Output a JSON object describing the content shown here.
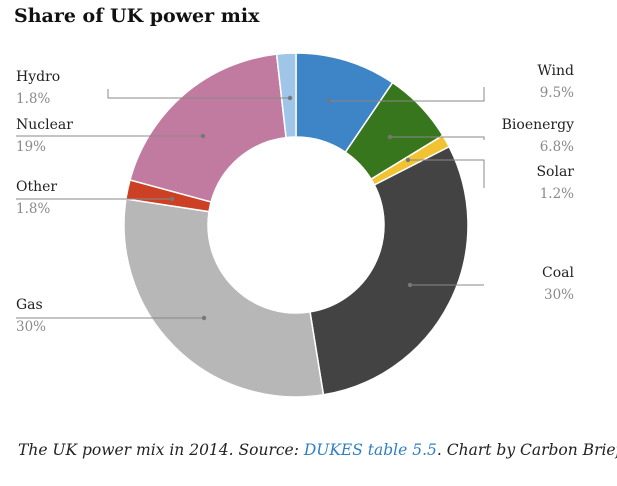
{
  "chart_data": {
    "type": "pie",
    "variant": "donut",
    "title": "Share of UK power mix",
    "legend": "none",
    "slices": [
      {
        "label": "Wind",
        "value": 9.5,
        "value_label": "9.5%",
        "color": "#3d85c6"
      },
      {
        "label": "Bioenergy",
        "value": 6.8,
        "value_label": "6.8%",
        "color": "#38761d"
      },
      {
        "label": "Solar",
        "value": 1.2,
        "value_label": "1.2%",
        "color": "#f1c232"
      },
      {
        "label": "Coal",
        "value": 30,
        "value_label": "30%",
        "color": "#434343"
      },
      {
        "label": "Gas",
        "value": 30,
        "value_label": "30%",
        "color": "#b7b7b7"
      },
      {
        "label": "Other",
        "value": 1.8,
        "value_label": "1.8%",
        "color": "#cc4125"
      },
      {
        "label": "Nuclear",
        "value": 19,
        "value_label": "19%",
        "color": "#c27ba0"
      },
      {
        "label": "Hydro",
        "value": 1.8,
        "value_label": "1.8%",
        "color": "#9fc5e8"
      }
    ]
  },
  "caption": {
    "prefix": "The UK power mix in 2014. Source: ",
    "link_text": "DUKES table 5.5",
    "suffix": ". Chart by Carbon Brief."
  }
}
